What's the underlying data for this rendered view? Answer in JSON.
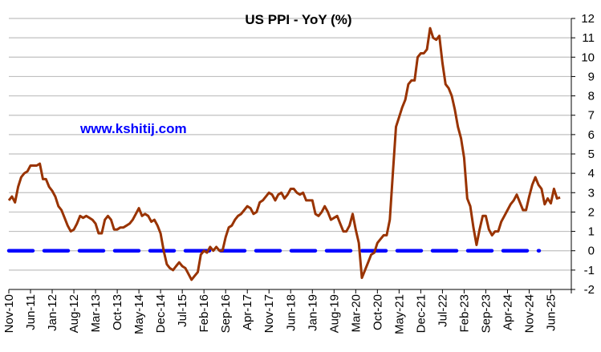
{
  "chart_data": {
    "type": "line",
    "title": "US PPI - YoY (%)",
    "watermark": "www.kshitij.com",
    "y_axis": {
      "position": "right",
      "min": -2,
      "max": 12,
      "step": 1,
      "ticks": [
        "-2",
        "-1",
        "0",
        "1",
        "2",
        "3",
        "4",
        "5",
        "6",
        "7",
        "8",
        "9",
        "10",
        "11",
        "12"
      ]
    },
    "x_axis": {
      "start": "Nov-10",
      "end": "Sep-25",
      "frequency": "monthly",
      "ticks": [
        "Nov-10",
        "Jun-11",
        "Jan-12",
        "Aug-12",
        "Mar-13",
        "Oct-13",
        "May-14",
        "Dec-14",
        "Jul-15",
        "Feb-16",
        "Sep-16",
        "Apr-17",
        "Nov-17",
        "Jun-18",
        "Jan-19",
        "Aug-19",
        "Mar-20",
        "Oct-20",
        "May-21",
        "Dec-21",
        "Jul-22",
        "Feb-23",
        "Sep-23",
        "Apr-24",
        "Nov-24",
        "Jun-25"
      ]
    },
    "grid": true,
    "reference_line": {
      "value": 0,
      "style": "dashed",
      "color": "#0000ff"
    },
    "series": [
      {
        "color": "#993300",
        "values": [
          2.6,
          2.8,
          2.5,
          3.3,
          3.8,
          4.0,
          4.1,
          4.4,
          4.4,
          4.4,
          4.5,
          3.7,
          3.7,
          3.3,
          3.1,
          2.8,
          2.3,
          2.1,
          1.7,
          1.3,
          1.0,
          1.1,
          1.4,
          1.8,
          1.7,
          1.8,
          1.7,
          1.6,
          1.4,
          0.9,
          0.9,
          1.6,
          1.8,
          1.6,
          1.1,
          1.1,
          1.2,
          1.2,
          1.3,
          1.4,
          1.6,
          1.9,
          2.2,
          1.8,
          1.9,
          1.8,
          1.5,
          1.6,
          1.3,
          0.9,
          0.0,
          -0.7,
          -0.9,
          -1.0,
          -0.8,
          -0.6,
          -0.8,
          -0.9,
          -1.2,
          -1.5,
          -1.3,
          -1.1,
          -0.2,
          0.0,
          -0.1,
          0.2,
          0.0,
          0.2,
          0.0,
          0.0,
          0.7,
          1.2,
          1.3,
          1.6,
          1.8,
          1.9,
          2.1,
          2.3,
          2.2,
          1.9,
          2.0,
          2.5,
          2.6,
          2.8,
          3.0,
          2.9,
          2.6,
          2.9,
          3.0,
          2.7,
          2.9,
          3.2,
          3.2,
          3.0,
          2.9,
          3.0,
          2.6,
          2.6,
          2.6,
          1.9,
          1.8,
          2.0,
          2.3,
          2.0,
          1.6,
          1.7,
          1.8,
          1.4,
          1.0,
          1.0,
          1.3,
          1.9,
          1.1,
          0.4,
          -1.4,
          -1.0,
          -0.6,
          -0.2,
          -0.1,
          0.4,
          0.6,
          0.8,
          0.8,
          1.6,
          4.0,
          6.4,
          6.9,
          7.4,
          7.8,
          8.6,
          8.8,
          8.8,
          10.0,
          10.2,
          10.2,
          10.4,
          11.5,
          11.0,
          10.9,
          11.1,
          9.7,
          8.6,
          8.4,
          8.0,
          7.3,
          6.4,
          5.8,
          4.8,
          2.7,
          2.3,
          1.2,
          0.3,
          1.1,
          1.8,
          1.8,
          1.1,
          0.8,
          1.0,
          1.0,
          1.5,
          1.8,
          2.1,
          2.4,
          2.6,
          2.9,
          2.5,
          2.1,
          2.1,
          2.8,
          3.4,
          3.8,
          3.4,
          3.2,
          2.4,
          2.7,
          2.45,
          3.2,
          2.7,
          2.75
        ]
      }
    ]
  }
}
